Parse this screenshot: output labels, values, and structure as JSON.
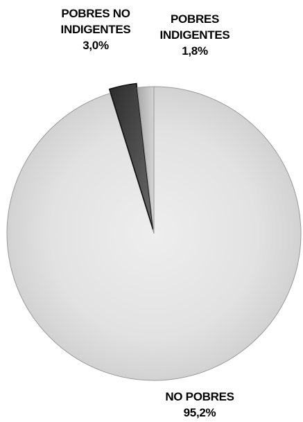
{
  "chart_data": {
    "type": "pie",
    "title": "",
    "legend": "none",
    "slices": [
      {
        "label_lines": [
          "NO POBRES"
        ],
        "value": 95.2,
        "value_label": "95,2%",
        "color": "#d9d9d9",
        "exploded": false
      },
      {
        "label_lines": [
          "POBRES NO",
          "INDIGENTES"
        ],
        "value": 3.0,
        "value_label": "3,0%",
        "color": "#3a3a3a",
        "exploded": true
      },
      {
        "label_lines": [
          "POBRES",
          "INDIGENTES"
        ],
        "value": 1.8,
        "value_label": "1,8%",
        "color": "#bdbdbd",
        "exploded": false
      }
    ]
  }
}
